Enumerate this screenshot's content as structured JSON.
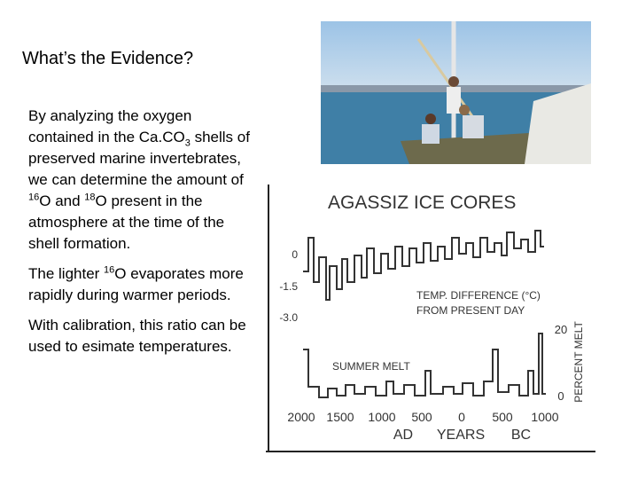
{
  "title": "What’s the Evidence?",
  "paragraphs": [
    [
      {
        "text": "By analyzing the oxygen contained in the Ca.CO"
      },
      {
        "sub": "3"
      },
      {
        "text": " shells of preserved marine invertebrates, we can determine the amount of "
      },
      {
        "sup": "16"
      },
      {
        "text": "O and "
      },
      {
        "sup": "18"
      },
      {
        "text": "O present in the atmosphere at the time of the shell formation."
      }
    ],
    [
      {
        "text": "The lighter "
      },
      {
        "sup": "16"
      },
      {
        "text": "O evaporates more rapidly during warmer periods."
      }
    ],
    [
      {
        "text": "With calibration, this ratio can be used to esimate temperatures."
      }
    ]
  ],
  "figure": {
    "title": "AGASSIZ ICE CORES",
    "temp_ticks": [
      "0",
      "-1.5",
      "-3.0"
    ],
    "temp_label": [
      "TEMP. DIFFERENCE (°C)",
      "FROM PRESENT DAY"
    ],
    "melt_label": "SUMMER MELT",
    "melt_ticks": [
      "20",
      "0"
    ],
    "melt_axis": "PERCENT MELT",
    "year_ticks": [
      "2000",
      "1500",
      "1000",
      "500",
      "0",
      "500",
      "1000"
    ],
    "era_labels": [
      "AD",
      "YEARS",
      "BC"
    ]
  }
}
